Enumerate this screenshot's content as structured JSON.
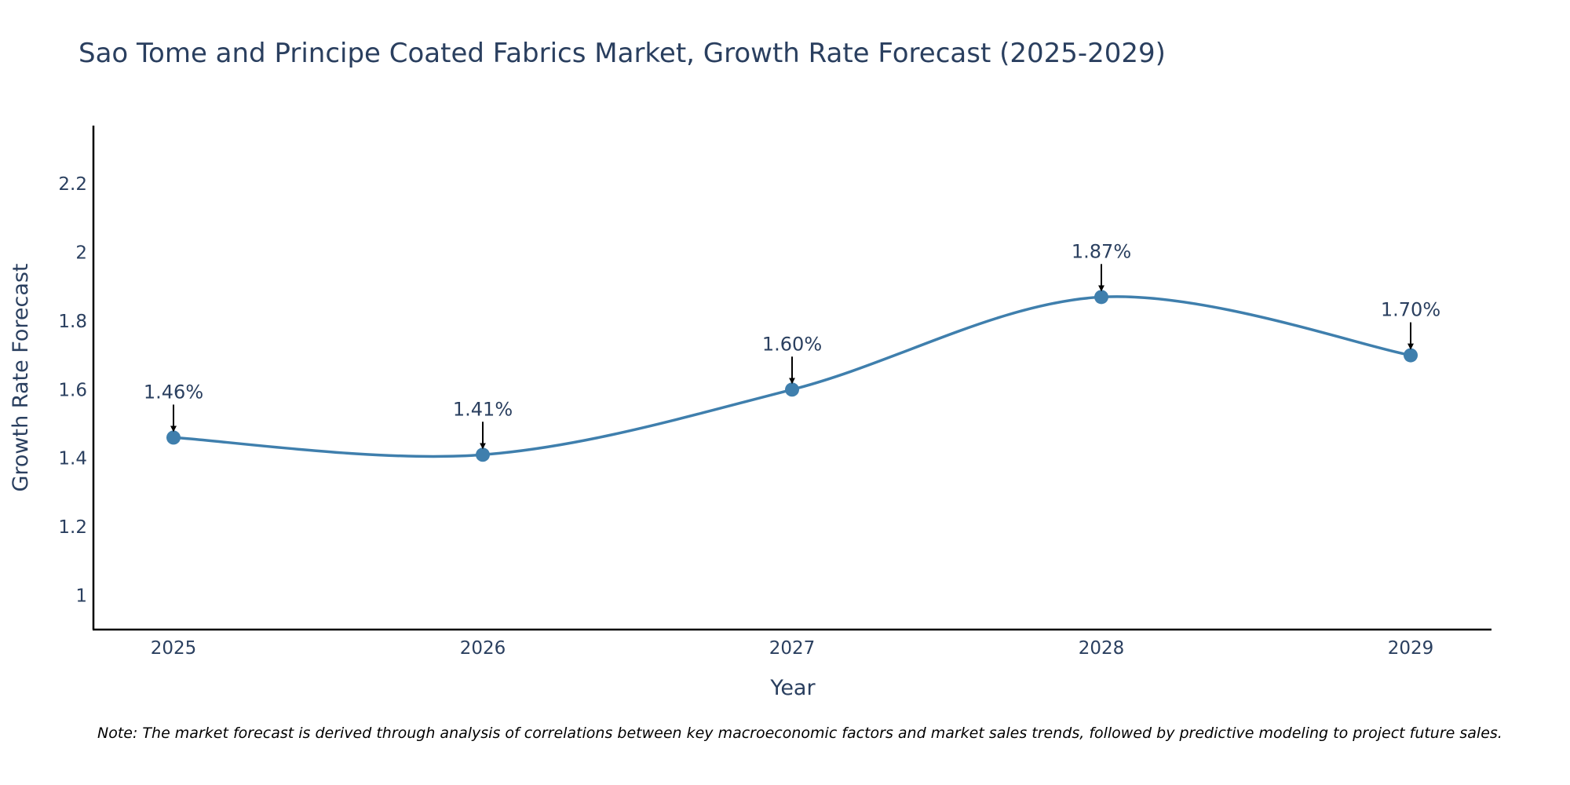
{
  "chart_data": {
    "type": "line",
    "title": "Sao Tome and Principe Coated Fabrics Market, Growth Rate Forecast (2025-2029)",
    "xlabel": "Year",
    "ylabel": "Growth Rate Forecast",
    "categories": [
      "2025",
      "2026",
      "2027",
      "2028",
      "2029"
    ],
    "values": [
      1.46,
      1.41,
      1.6,
      1.87,
      1.7
    ],
    "data_labels": [
      "1.46%",
      "1.41%",
      "1.60%",
      "1.87%",
      "1.70%"
    ],
    "yticks": [
      1,
      1.2,
      1.4,
      1.6,
      1.8,
      2,
      2.2
    ],
    "ytick_labels": [
      "1",
      "1.2",
      "1.4",
      "1.6",
      "1.8",
      "2",
      "2.2"
    ],
    "ylim": [
      0.9,
      2.37
    ],
    "grid": false,
    "legend": "none",
    "line_color": "#3f7fad",
    "marker_color": "#3f7fad",
    "arrow_color": "#000000"
  },
  "note": "Note: The market forecast is derived through analysis of correlations between key macroeconomic factors and market sales trends, followed by predictive modeling to project future sales."
}
